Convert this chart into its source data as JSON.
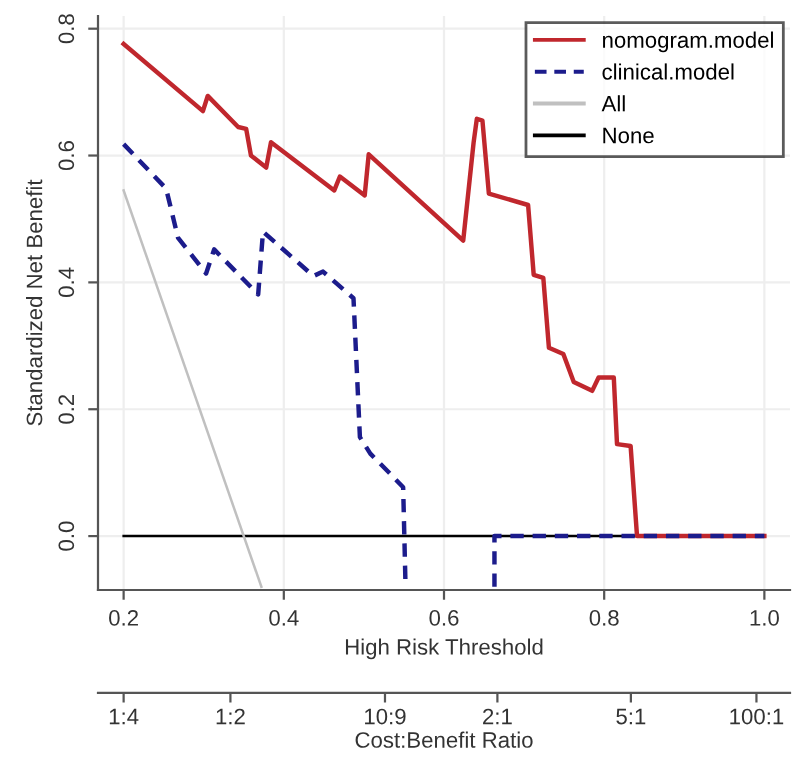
{
  "chart_data": {
    "type": "line",
    "xlabel": "High Risk Threshold",
    "ylabel": "Standardized Net Benefit",
    "x2label": "Cost:Benefit Ratio",
    "xlim": [
      0.168,
      1.032
    ],
    "ylim": [
      -0.085,
      0.82
    ],
    "xticks": [
      0.2,
      0.4,
      0.6,
      0.8,
      {
        "value": 1,
        "label": "1.0"
      }
    ],
    "yticks": [
      {
        "value": 0,
        "label": "0.0"
      },
      0.2,
      0.4,
      0.6,
      0.8
    ],
    "annotations": [
      "1:4",
      "1:2",
      "10:9",
      "2:1",
      "5:1",
      "100:1"
    ],
    "grid": true,
    "legend": "top right",
    "series": [
      {
        "name": "nomogram.model",
        "color": "#c0272d",
        "line_style": "solid",
        "x": [
          0.2,
          0.299,
          0.305,
          0.343,
          0.353,
          0.359,
          0.378,
          0.384,
          0.463,
          0.47,
          0.501,
          0.506,
          0.624,
          0.637,
          0.641,
          0.648,
          0.656,
          0.705,
          0.712,
          0.724,
          0.731,
          0.749,
          0.762,
          0.785,
          0.793,
          0.812,
          0.816,
          0.833,
          0.841,
          1.0
        ],
        "values": [
          0.776,
          0.67,
          0.694,
          0.645,
          0.642,
          0.6,
          0.581,
          0.621,
          0.545,
          0.567,
          0.537,
          0.602,
          0.466,
          0.621,
          0.658,
          0.655,
          0.54,
          0.522,
          0.412,
          0.407,
          0.297,
          0.287,
          0.243,
          0.229,
          0.25,
          0.25,
          0.145,
          0.142,
          0.0,
          0.0
        ]
      },
      {
        "name": "clinical.model",
        "color": "#1c1c8c",
        "line_style": "dashed",
        "x": [
          0.2,
          0.253,
          0.268,
          0.303,
          0.313,
          0.368,
          0.374,
          0.437,
          0.449,
          0.487,
          0.495,
          0.508,
          0.533,
          0.549,
          0.552,
          0.6,
          0.663,
          0.663,
          1.0
        ],
        "values": [
          0.618,
          0.548,
          0.47,
          0.414,
          0.452,
          0.381,
          0.48,
          0.41,
          0.417,
          0.375,
          0.156,
          0.13,
          0.098,
          0.077,
          -0.08,
          null,
          -0.08,
          0.0,
          0.0
        ]
      },
      {
        "name": "All",
        "color": "#c0c0c0",
        "line_style": "solid",
        "x": [
          0.2,
          0.372
        ],
        "values": [
          0.545,
          -0.08
        ]
      },
      {
        "name": "None",
        "color": "#000000",
        "line_style": "solid",
        "x": [
          0.2,
          1.0
        ],
        "values": [
          0.0,
          0.0
        ]
      }
    ]
  }
}
